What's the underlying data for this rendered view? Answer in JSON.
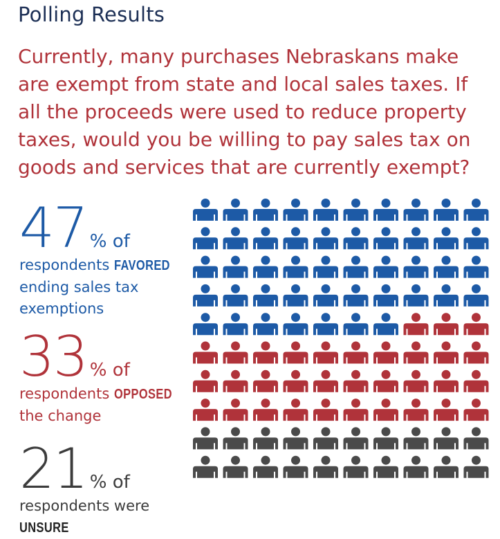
{
  "title": "Polling Results",
  "question": "Currently, many purchases Nebraskans make are exempt from state and local sales taxes. If all the proceeds were used to reduce property taxes, would you be willing to pay sales tax on goods and services that are currently exempt?",
  "stats": {
    "favored": {
      "value": "47",
      "pct": "% of",
      "pre": "respondents ",
      "emph": "FAVORED",
      "post_line1": "ending sales tax",
      "post_line2": "exemptions"
    },
    "opposed": {
      "value": "33",
      "pct": "% of",
      "pre": "respondents ",
      "emph": "OPPOSED",
      "post_line1": "the change"
    },
    "unsure": {
      "value": "21",
      "pct": "% of",
      "pre": "respondents were",
      "emph": "UNSURE"
    }
  },
  "colors": {
    "favored": "#1d5aa6",
    "opposed": "#b0333a",
    "unsure": "#4a4a4a",
    "title": "#1c2f55"
  },
  "icon": "person-icon",
  "chart_data": {
    "type": "pictogram",
    "total_icons": 100,
    "columns": 10,
    "rows": 10,
    "series": [
      {
        "name": "FAVORED",
        "value": 47,
        "icons": 47
      },
      {
        "name": "OPPOSED",
        "value": 33,
        "icons": 33
      },
      {
        "name": "UNSURE",
        "value": 21,
        "icons": 20
      }
    ]
  }
}
